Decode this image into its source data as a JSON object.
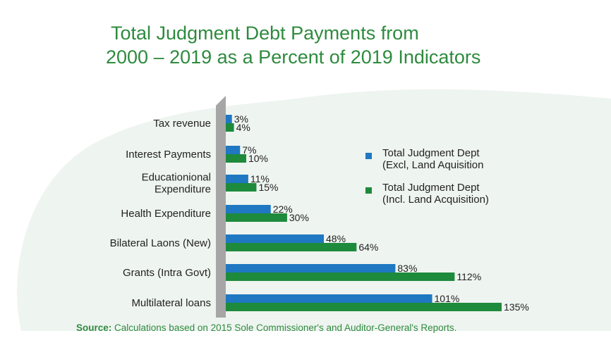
{
  "title_line_1": "Total Judgment Debt Payments  from",
  "title_line_2": "2000 – 2019 as  a Percent of 2019 Indicators",
  "source_label": "Source:",
  "source_text": " Calculations based on 2015 Sole Commissioner's and Auditor-General's Reports.",
  "colors": {
    "title": "#2e8b3e",
    "series_excl": "#1f78c1",
    "series_incl": "#1e8a3c",
    "axis_bar": "#a6a6a6",
    "background_blob": "#eef4f0"
  },
  "chart_data": {
    "type": "bar",
    "orientation": "horizontal",
    "categories": [
      [
        "Tax revenue"
      ],
      [
        "Interest Payments"
      ],
      [
        "Educationional",
        "Expenditure"
      ],
      [
        "Health Expenditure"
      ],
      [
        "Bilateral Laons (New)"
      ],
      [
        "Grants (Intra Govt)"
      ],
      [
        "Multilateral loans"
      ]
    ],
    "series": [
      {
        "name": "Total Judgment Dept (Excl, Land Aquisition",
        "legend_lines": [
          "Total Judgment Dept",
          "(Excl, Land Aquisition"
        ],
        "values": [
          3,
          7,
          11,
          22,
          48,
          83,
          101
        ],
        "labels": [
          "3%",
          "7%",
          "11%",
          "22%",
          "48%",
          "83%",
          "101%"
        ]
      },
      {
        "name": "Total Judgment Dept (Incl. Land Acquisition)",
        "legend_lines": [
          "Total Judgment Dept",
          "(Incl. Land Acquisition)"
        ],
        "values": [
          4,
          10,
          15,
          30,
          64,
          112,
          135
        ],
        "labels": [
          "4%",
          "10%",
          "15%",
          "30%",
          "64%",
          "112%",
          "135%"
        ]
      }
    ],
    "unit": "%",
    "xlim": [
      0,
      135
    ],
    "grid": false,
    "legend_position": "right"
  }
}
